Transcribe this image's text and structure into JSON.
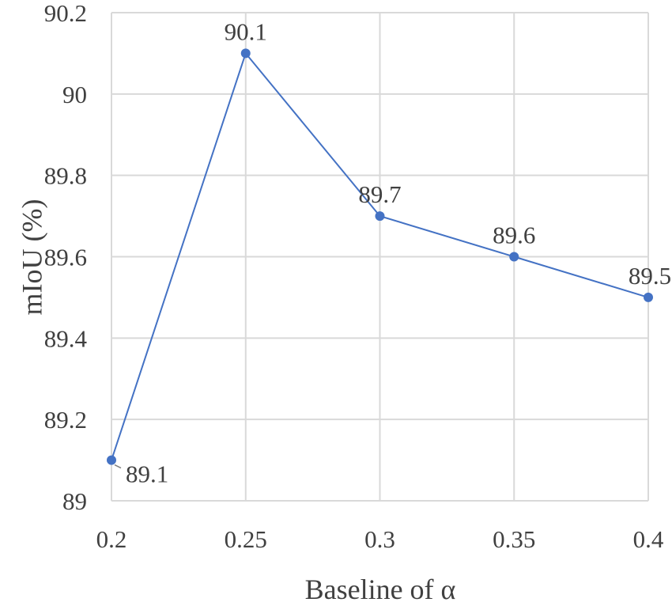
{
  "chart_data": {
    "type": "line",
    "title": "",
    "xlabel": "Baseline of α",
    "ylabel": "mIoU (%)",
    "x": [
      0.2,
      0.25,
      0.3,
      0.35,
      0.4
    ],
    "x_tick_labels": [
      "0.2",
      "0.25",
      "0.3",
      "0.35",
      "0.4"
    ],
    "y_ticks": [
      89,
      89.2,
      89.4,
      89.6,
      89.8,
      90,
      90.2
    ],
    "y_tick_labels": [
      "89",
      "89.2",
      "89.4",
      "89.6",
      "89.8",
      "90",
      "90.2"
    ],
    "xlim": [
      0.2,
      0.4
    ],
    "ylim": [
      89,
      90.2
    ],
    "grid": true,
    "legend": "none",
    "series": [
      {
        "values": [
          89.1,
          90.1,
          89.7,
          89.6,
          89.5
        ],
        "data_labels": [
          "89.1",
          "90.1",
          "89.7",
          "89.6",
          "89.5"
        ],
        "color": "#4472C4"
      }
    ],
    "grid_color": "#D9D9D9"
  }
}
